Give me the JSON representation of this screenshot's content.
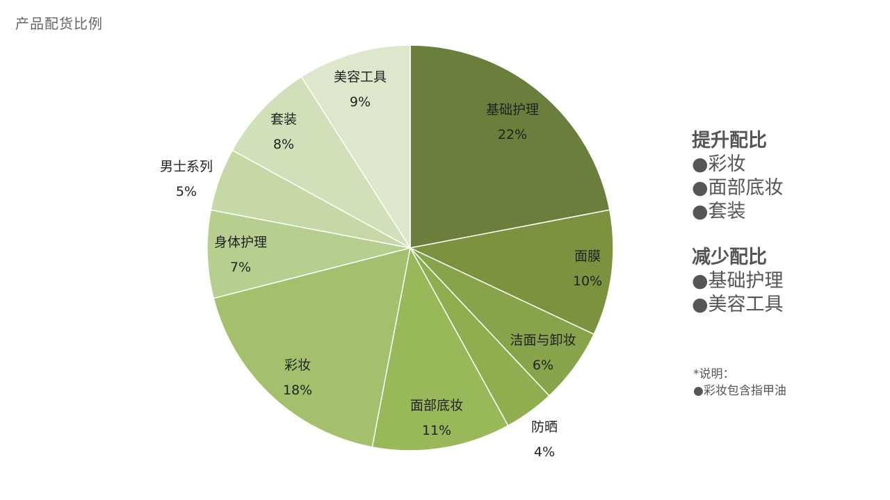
{
  "title": "产品配货比例",
  "chart_data": {
    "type": "pie",
    "slices": [
      {
        "label": "基础护理",
        "value": 22,
        "value_label": "22%",
        "color": "#6a7f3c"
      },
      {
        "label": "面膜",
        "value": 10,
        "value_label": "10%",
        "color": "#7b933f"
      },
      {
        "label": "洁面与卸妆",
        "value": 6,
        "value_label": "6%",
        "color": "#88a44a"
      },
      {
        "label": "防晒",
        "value": 4,
        "value_label": "4%",
        "color": "#90ad4f"
      },
      {
        "label": "面部底妆",
        "value": 11,
        "value_label": "11%",
        "color": "#99b85a"
      },
      {
        "label": "彩妆",
        "value": 18,
        "value_label": "18%",
        "color": "#a4c06c"
      },
      {
        "label": "身体护理",
        "value": 7,
        "value_label": "7%",
        "color": "#b6ce8e"
      },
      {
        "label": "男士系列",
        "value": 5,
        "value_label": "5%",
        "color": "#c5d8a6"
      },
      {
        "label": "套装",
        "value": 8,
        "value_label": "8%",
        "color": "#d0e0b8"
      },
      {
        "label": "美容工具",
        "value": 9,
        "value_label": "9%",
        "color": "#dce7cb"
      }
    ]
  },
  "side": {
    "increase": {
      "heading": "提升配比",
      "items": [
        "●彩妆",
        "●面部底妆",
        "●套装"
      ]
    },
    "decrease": {
      "heading": "减少配比",
      "items": [
        "●基础护理",
        "●美容工具"
      ]
    }
  },
  "note": {
    "heading": "*说明：",
    "items": [
      "●彩妆包含指甲油"
    ]
  }
}
